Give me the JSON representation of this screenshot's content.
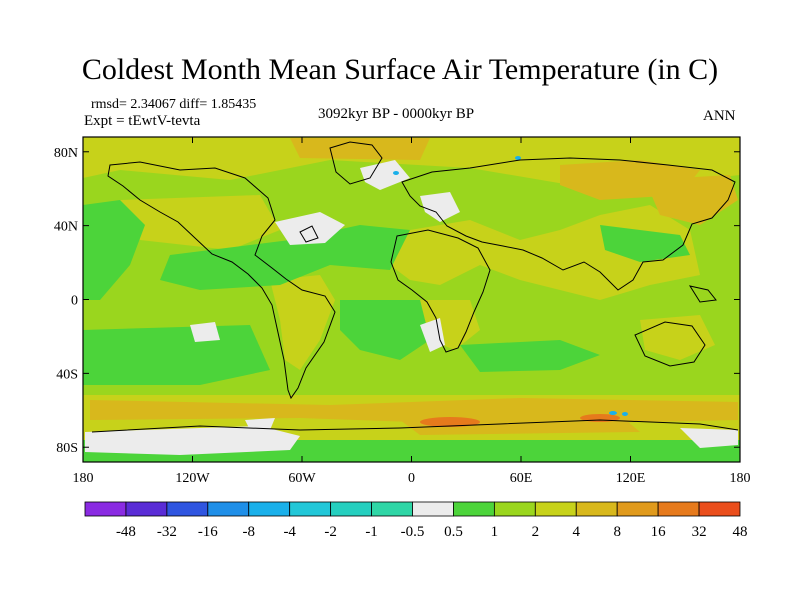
{
  "title": "Coldest Month Mean Surface Air Temperature (in C)",
  "stats": "rmsd= 2.34067 diff= 1.85435",
  "experiment": "Expt = tEwtV-tevta",
  "period": "3092kyr BP - 0000kyr BP",
  "season": "ANN",
  "lat_ticks": [
    "80N",
    "40N",
    "0",
    "40S",
    "80S"
  ],
  "lat_values": [
    80,
    40,
    0,
    -40,
    -80
  ],
  "lon_ticks": [
    "180",
    "120W",
    "60W",
    "0",
    "60E",
    "120E",
    "180"
  ],
  "lon_values": [
    -180,
    -120,
    -60,
    0,
    60,
    120,
    180
  ],
  "colorbar": {
    "labels": [
      "-48",
      "-32",
      "-16",
      "-8",
      "-4",
      "-2",
      "-1",
      "-0.5",
      "0.5",
      "1",
      "2",
      "4",
      "8",
      "16",
      "32",
      "48"
    ],
    "colors": [
      "#8a2be2",
      "#5a2cd6",
      "#2f55e0",
      "#1f8fe8",
      "#1ab0ea",
      "#22c7d8",
      "#25cfbf",
      "#2fd6a6",
      "#ececec",
      "#4cd43a",
      "#9ad61e",
      "#c7d21a",
      "#d8b81c",
      "#e09a1c",
      "#e67a1c",
      "#ea4e1c"
    ]
  }
}
